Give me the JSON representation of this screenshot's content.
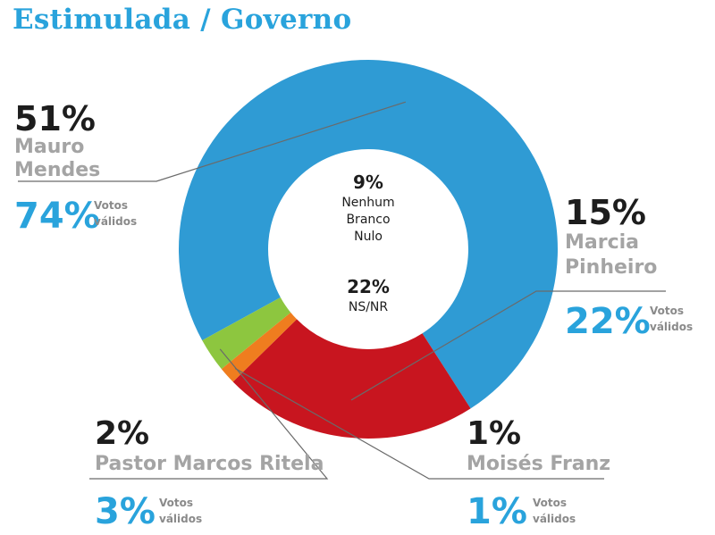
{
  "title": "Estimulada / Governo",
  "colors": {
    "title": "#29a3dc",
    "blue": "#2f9bd4",
    "red": "#c8151f",
    "orange": "#ef7d1f",
    "green": "#8dc63f",
    "gray_label": "#a4a4a4",
    "dark": "#1d1d1d"
  },
  "chart_data": {
    "type": "pie",
    "variant": "donut",
    "title": "Estimulada / Governo",
    "slices": [
      {
        "name": "Mauro Mendes",
        "pct": "51%",
        "value": 51,
        "valid_pct": "74%",
        "valid_label": [
          "Votos",
          "válidos"
        ],
        "color": "#2f9bd4"
      },
      {
        "name": "Marcia Pinheiro",
        "pct": "15%",
        "value": 15,
        "valid_pct": "22%",
        "valid_label": [
          "Votos",
          "válidos"
        ],
        "color": "#c8151f"
      },
      {
        "name": "Moisés Franz",
        "pct": "1%",
        "value": 1,
        "valid_pct": "1%",
        "valid_label": [
          "Votos",
          "válidos"
        ],
        "color": "#ef7d1f"
      },
      {
        "name": "Pastor Marcos Ritela",
        "pct": "2%",
        "value": 2,
        "valid_pct": "3%",
        "valid_label": [
          "Votos",
          "válidos"
        ],
        "color": "#8dc63f"
      }
    ],
    "center": [
      {
        "pct": "9%",
        "value": 9,
        "lines": [
          "Nenhum",
          "Branco",
          "Nulo"
        ]
      },
      {
        "pct": "22%",
        "value": 22,
        "lines": [
          "NS/NR"
        ]
      }
    ]
  }
}
